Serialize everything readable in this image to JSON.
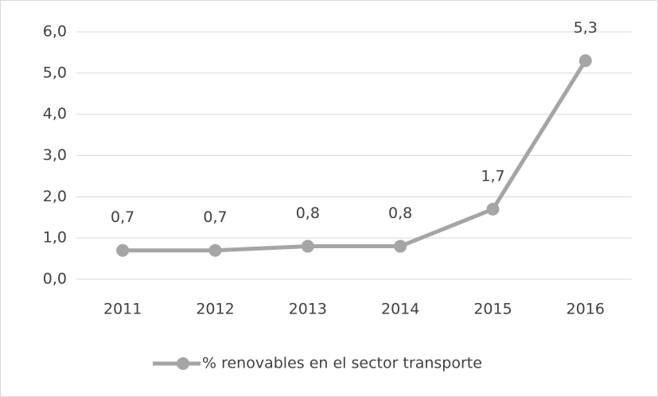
{
  "chart_data": {
    "type": "line",
    "categories": [
      "2011",
      "2012",
      "2013",
      "2014",
      "2015",
      "2016"
    ],
    "series": [
      {
        "name": "% renovables en el sector transporte",
        "color": "#a5a5a5",
        "values": [
          0.7,
          0.7,
          0.8,
          0.8,
          1.7,
          5.3
        ],
        "value_labels": [
          "0,7",
          "0,7",
          "0,8",
          "0,8",
          "1,7",
          "5,3"
        ]
      }
    ],
    "ylim": [
      0,
      6
    ],
    "yticks": [
      {
        "value": 0,
        "label": "0,0"
      },
      {
        "value": 1,
        "label": "1,0"
      },
      {
        "value": 2,
        "label": "2,0"
      },
      {
        "value": 3,
        "label": "3,0"
      },
      {
        "value": 4,
        "label": "4,0"
      },
      {
        "value": 5,
        "label": "5,0"
      },
      {
        "value": 6,
        "label": "6,0"
      }
    ],
    "grid": true,
    "legend": "bottom"
  }
}
